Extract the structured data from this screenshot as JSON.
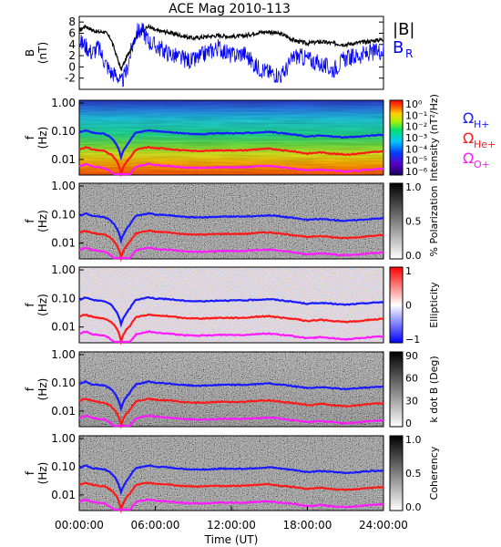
{
  "chart_data": [
    {
      "type": "line",
      "title": "ACE Mag 2010-113",
      "ylabel": "B (nT)",
      "ylim": [
        -4,
        9
      ],
      "yticks": [
        "8",
        "6",
        "4",
        "2",
        "0",
        "-2"
      ],
      "legend_placement": "right",
      "series": [
        {
          "name": "|B|",
          "color": "#000000",
          "x_hours": [
            0,
            0.5,
            1,
            1.5,
            2,
            2.5,
            3,
            3.3,
            3.7,
            4,
            4.5,
            5,
            5.5,
            6,
            7,
            8,
            9,
            10,
            11,
            12,
            13,
            14,
            15,
            16,
            17,
            18,
            19,
            20,
            21,
            22,
            23,
            24
          ],
          "values": [
            6.5,
            7.3,
            6.6,
            6.2,
            6.3,
            5.0,
            1.6,
            -0.5,
            1.5,
            3.0,
            5.5,
            6.6,
            7.2,
            6.5,
            6.2,
            5.6,
            5.1,
            5.4,
            5.6,
            5.4,
            5.5,
            6.1,
            6.3,
            5.8,
            4.7,
            4.2,
            4.5,
            4.2,
            4.0,
            4.3,
            4.6,
            4.9
          ]
        },
        {
          "name": "B_R",
          "color": "#0000ff",
          "x_hours": [
            0,
            0.5,
            1,
            1.5,
            2,
            2.5,
            3,
            3.3,
            3.7,
            4,
            4.5,
            5,
            5.5,
            6,
            7,
            8,
            9,
            10,
            11,
            12,
            13,
            14,
            15,
            16,
            17,
            18,
            19,
            20,
            21,
            22,
            23,
            24
          ],
          "values": [
            4.5,
            3.8,
            2.5,
            3.5,
            1.0,
            -1.0,
            -1.5,
            -3.0,
            -1.0,
            2.0,
            6.2,
            6.5,
            4.5,
            3.8,
            2.5,
            1.5,
            1.0,
            2.5,
            3.5,
            2.0,
            2.5,
            0.0,
            -1.0,
            -1.5,
            2.0,
            1.5,
            0.5,
            -0.5,
            1.5,
            2.0,
            2.5,
            3.0
          ]
        }
      ]
    },
    {
      "type": "heatmap",
      "ylabel": "f (Hz)",
      "yscale": "log",
      "yticks": [
        "1.00",
        "0.10",
        "0.01"
      ],
      "colorbar_label": "Intensity (nT²/Hz)",
      "colorbar_ticks": [
        "10⁰",
        "10⁻¹",
        "10⁻²",
        "10⁻³",
        "10⁻⁴",
        "10⁻⁵",
        "10⁻⁶"
      ],
      "colorscale": "rainbow",
      "lines": [
        "H+",
        "He+",
        "O+"
      ]
    },
    {
      "type": "heatmap",
      "ylabel": "f (Hz)",
      "yscale": "log",
      "yticks": [
        "1.00",
        "0.10",
        "0.01"
      ],
      "colorbar_label": "% Polarization",
      "colorbar_ticks": [
        "1.0",
        "0.5",
        "0.0"
      ],
      "colorscale": "gray",
      "lines": [
        "H+",
        "He+",
        "O+"
      ]
    },
    {
      "type": "heatmap",
      "ylabel": "f (Hz)",
      "yscale": "log",
      "yticks": [
        "1.00",
        "0.10",
        "0.01"
      ],
      "colorbar_label": "Ellipticity",
      "colorbar_ticks": [
        "1",
        "0",
        "−1"
      ],
      "colorscale": "red-white-blue",
      "lines": [
        "H+",
        "He+",
        "O+"
      ]
    },
    {
      "type": "heatmap",
      "ylabel": "f (Hz)",
      "yscale": "log",
      "yticks": [
        "1.00",
        "0.10",
        "0.01"
      ],
      "colorbar_label": "k dot B (Deg)",
      "colorbar_ticks": [
        "90",
        "60",
        "30",
        "0"
      ],
      "colorscale": "gray",
      "lines": [
        "H+",
        "He+",
        "O+"
      ]
    },
    {
      "type": "heatmap",
      "ylabel": "f (Hz)",
      "yscale": "log",
      "yticks": [
        "1.00",
        "0.10",
        "0.01"
      ],
      "colorbar_label": "Coherency",
      "colorbar_ticks": [
        "1.0",
        "0.5",
        "0.0"
      ],
      "colorscale": "gray",
      "lines": [
        "H+",
        "He+",
        "O+"
      ]
    }
  ],
  "gyrofrequency_lines": {
    "legend": [
      {
        "label": "Ω",
        "sub": "H+",
        "color": "#1a1aff"
      },
      {
        "label": "Ω",
        "sub": "He+",
        "color": "#ff1a1a"
      },
      {
        "label": "Ω",
        "sub": "O+",
        "color": "#ff1aff"
      }
    ],
    "x_hours": [
      0,
      0.5,
      1,
      1.5,
      2,
      2.5,
      3,
      3.3,
      3.7,
      4,
      4.5,
      5,
      5.5,
      6,
      7,
      8,
      9,
      10,
      11,
      12,
      13,
      14,
      15,
      16,
      17,
      18,
      19,
      20,
      21,
      22,
      23,
      24
    ],
    "H+_hz": [
      0.09,
      0.11,
      0.09,
      0.085,
      0.08,
      0.06,
      0.03,
      0.012,
      0.03,
      0.045,
      0.09,
      0.1,
      0.11,
      0.1,
      0.095,
      0.085,
      0.08,
      0.08,
      0.085,
      0.085,
      0.085,
      0.09,
      0.095,
      0.085,
      0.075,
      0.065,
      0.07,
      0.065,
      0.06,
      0.065,
      0.07,
      0.075
    ],
    "He+_hz": [
      0.023,
      0.027,
      0.023,
      0.021,
      0.02,
      0.015,
      0.008,
      0.003,
      0.008,
      0.011,
      0.022,
      0.025,
      0.027,
      0.025,
      0.024,
      0.021,
      0.02,
      0.02,
      0.021,
      0.021,
      0.021,
      0.023,
      0.024,
      0.021,
      0.019,
      0.016,
      0.018,
      0.016,
      0.015,
      0.016,
      0.018,
      0.019
    ],
    "O+_hz": [
      0.0057,
      0.0069,
      0.0057,
      0.0053,
      0.005,
      0.0037,
      0.002,
      0.0008,
      0.002,
      0.0028,
      0.0056,
      0.0063,
      0.0069,
      0.0063,
      0.0059,
      0.0053,
      0.005,
      0.005,
      0.0053,
      0.0053,
      0.0053,
      0.0057,
      0.0059,
      0.0053,
      0.0047,
      0.004,
      0.0044,
      0.004,
      0.0037,
      0.004,
      0.0044,
      0.0047
    ]
  },
  "x_axis": {
    "label": "Time (UT)",
    "ticks": [
      "00:00:00",
      "06:00:00",
      "12:00:00",
      "18:00:00",
      "24:00:00"
    ],
    "range_hours": [
      0,
      24
    ]
  },
  "labels": {
    "title": "ACE Mag 2010-113",
    "legend_B": "|B|",
    "legend_BR": "B",
    "legend_BR_sub": "R"
  }
}
